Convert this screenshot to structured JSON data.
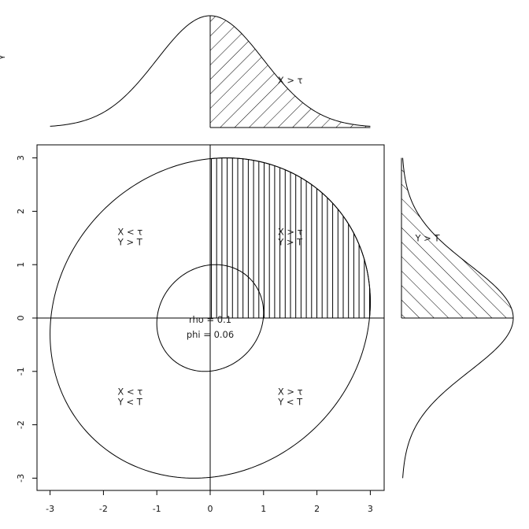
{
  "chart_data": {
    "type": "scatter",
    "rho_label": "rho = ",
    "rho_value": "0.1",
    "phi_label": "phi = ",
    "phi_value": "0.06",
    "xlim": [
      -3,
      3
    ],
    "ylim": [
      -3,
      3
    ],
    "x_ticks": [
      -3,
      -2,
      -1,
      0,
      1,
      2,
      3
    ],
    "y_ticks": [
      -3,
      -2,
      -1,
      0,
      1,
      2,
      3
    ],
    "tau": 0,
    "contours": [
      {
        "name": "inner",
        "level": 1
      },
      {
        "name": "outer",
        "level": 3
      }
    ],
    "quadrants": [
      {
        "name": "upper-left",
        "line1": "X < τ",
        "line2": "Y > T",
        "x": -1.5,
        "y": 1.5
      },
      {
        "name": "upper-right",
        "line1": "X > τ",
        "line2": "Y > T",
        "x": 1.5,
        "y": 1.5
      },
      {
        "name": "lower-left",
        "line1": "X < τ",
        "line2": "Y < T",
        "x": -1.5,
        "y": -1.5
      },
      {
        "name": "lower-right",
        "line1": "X > τ",
        "line2": "Y < T",
        "x": 1.5,
        "y": -1.5
      }
    ],
    "top_marginal": {
      "label": "X > τ",
      "label_x": 1.5
    },
    "right_marginal": {
      "label": "Y > T",
      "label_y": 1.5
    },
    "left_edge_glyph": "γ"
  }
}
